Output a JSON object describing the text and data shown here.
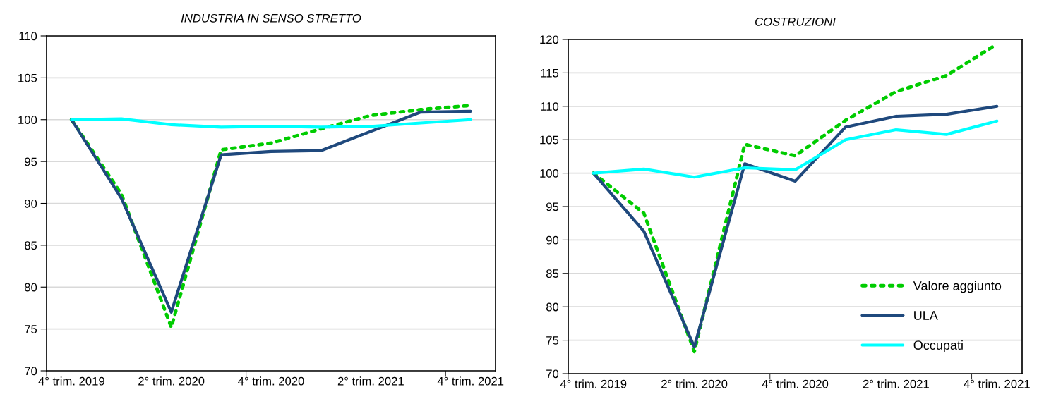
{
  "chart_data": [
    {
      "type": "line",
      "title": "INDUSTRIA IN SENSO STRETTO",
      "categories": [
        "4° trim. 2019",
        null,
        "2° trim. 2020",
        null,
        "4° trim. 2020",
        null,
        "2° trim. 2021",
        null,
        "4° trim. 2021"
      ],
      "ylim": [
        70,
        110
      ],
      "yticks": [
        70,
        75,
        80,
        85,
        90,
        95,
        100,
        105,
        110
      ],
      "grid": "y",
      "legend": false,
      "series": [
        {
          "color": "#00cc00",
          "line_style": "dotted",
          "values": [
            100,
            91.1,
            75.2,
            96.4,
            97.2,
            98.9,
            100.5,
            101.2,
            101.7
          ]
        },
        {
          "color": "#1f497d",
          "line_style": "solid",
          "values": [
            100,
            90.6,
            77.0,
            95.8,
            96.2,
            96.3,
            98.6,
            100.9,
            101.0
          ]
        },
        {
          "color": "#00ffff",
          "line_style": "solid",
          "values": [
            100,
            100.1,
            99.4,
            99.1,
            99.2,
            99.1,
            99.2,
            99.6,
            100
          ]
        }
      ]
    },
    {
      "type": "line",
      "title": "COSTRUZIONI",
      "categories": [
        "4° trim. 2019",
        null,
        "2° trim. 2020",
        null,
        "4° trim. 2020",
        null,
        "2° trim. 2021",
        null,
        "4° trim. 2021"
      ],
      "ylim": [
        70,
        120
      ],
      "yticks": [
        70,
        75,
        80,
        85,
        90,
        95,
        100,
        105,
        110,
        115,
        120
      ],
      "grid": "y",
      "legend": "bottom right",
      "series": [
        {
          "name": "Valore aggiunto",
          "color": "#00cc00",
          "line_style": "dotted",
          "values": [
            100,
            94.0,
            73.3,
            104.3,
            102.6,
            107.9,
            112.2,
            114.6,
            119.3
          ]
        },
        {
          "name": "ULA",
          "color": "#1f497d",
          "line_style": "solid",
          "values": [
            100,
            91.3,
            74.0,
            101.4,
            98.8,
            106.9,
            108.5,
            108.8,
            110.0
          ]
        },
        {
          "name": "Occupati",
          "color": "#00ffff",
          "line_style": "solid",
          "values": [
            100,
            100.6,
            99.4,
            100.8,
            100.5,
            105.0,
            106.5,
            105.8,
            107.8
          ]
        }
      ]
    }
  ]
}
